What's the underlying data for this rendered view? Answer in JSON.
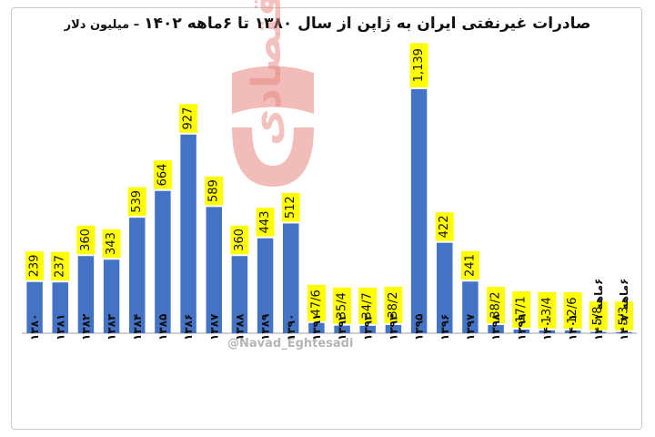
{
  "chart_data": {
    "type": "bar",
    "title": "صادرات غیرنفتی ایران به ژاپن از سال ۱۳۸۰ تا ۶ماهه ۱۴۰۲",
    "unit_label": "– میلیون دلار",
    "categories": [
      "۱۳۸۰",
      "۱۳۸۱",
      "۱۳۸۲",
      "۱۳۸۳",
      "۱۳۸۴",
      "۱۳۸۵",
      "۱۳۸۶",
      "۱۳۸۷",
      "۱۳۸۸",
      "۱۳۸۹",
      "۱۳۹۰",
      "۱۳۹۱",
      "۱۳۹۲",
      "۱۳۹۳",
      "۱۳۹۴",
      "۱۳۹۵",
      "۱۳۹۶",
      "۱۳۹۷",
      "۱۳۹۸",
      "۱۳۹۹",
      "۱۴۰۰",
      "۱۴۰۱",
      "۶ماهه ۱۴۰۱",
      "۶ماهه ۱۴۰۲"
    ],
    "values": [
      239,
      237,
      360,
      343,
      539,
      664,
      927,
      589,
      360,
      443,
      512,
      47.6,
      35.4,
      34.7,
      38.2,
      1139,
      422,
      241,
      38.2,
      17.1,
      13.4,
      12.6,
      5.8,
      5.3
    ],
    "value_labels": [
      "239",
      "237",
      "360",
      "343",
      "539",
      "664",
      "927",
      "589",
      "360",
      "443",
      "512",
      "47/6",
      "35/4",
      "34/7",
      "38/2",
      "1,139",
      "422",
      "241",
      "38/2",
      "17/1",
      "13/4",
      "12/6",
      "5/8",
      "5/3"
    ],
    "ylim": [
      0,
      1300
    ],
    "grid": false,
    "legend": "none",
    "bar_color": "#4472C4",
    "label_bg_color": "#FFFF00"
  },
  "watermark": {
    "logo_text": "نو",
    "brand_text": "نوداقتصادی",
    "handle": "@Navad_Eghtesadi",
    "color": "#E8867F"
  }
}
